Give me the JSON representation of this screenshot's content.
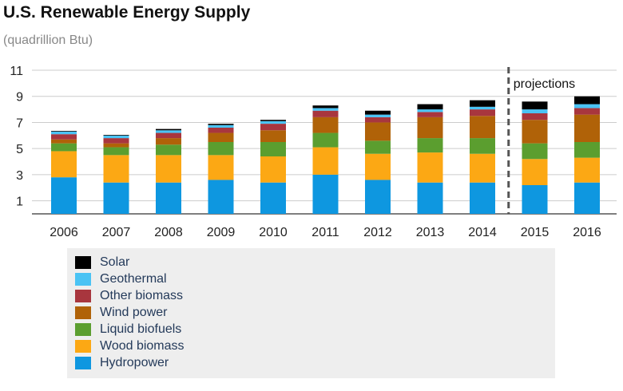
{
  "title": "U.S. Renewable Energy Supply",
  "subtitle": "(quadrillion Btu)",
  "annotation": "projections",
  "chart_data": {
    "type": "bar",
    "stacked": true,
    "categories": [
      "2006",
      "2007",
      "2008",
      "2009",
      "2010",
      "2011",
      "2012",
      "2013",
      "2014",
      "2015",
      "2016"
    ],
    "ylim": [
      0,
      11
    ],
    "yticks": [
      1,
      3,
      5,
      7,
      9,
      11
    ],
    "grid": true,
    "projection_start_after": "2014",
    "series": [
      {
        "name": "Hydropower",
        "color": "#0e97e0",
        "values": [
          2.8,
          2.4,
          2.4,
          2.6,
          2.4,
          3.0,
          2.6,
          2.4,
          2.4,
          2.2,
          2.4
        ]
      },
      {
        "name": "Wood biomass",
        "color": "#fca814",
        "values": [
          2.0,
          2.1,
          2.1,
          1.9,
          2.0,
          2.1,
          2.0,
          2.3,
          2.2,
          2.0,
          1.9
        ]
      },
      {
        "name": "Liquid biofuels",
        "color": "#5b9e2f",
        "values": [
          0.6,
          0.6,
          0.8,
          1.0,
          1.1,
          1.1,
          1.0,
          1.1,
          1.2,
          1.2,
          1.2
        ]
      },
      {
        "name": "Wind power",
        "color": "#b06208",
        "values": [
          0.3,
          0.3,
          0.5,
          0.7,
          0.9,
          1.2,
          1.4,
          1.6,
          1.7,
          1.8,
          2.1
        ]
      },
      {
        "name": "Other biomass",
        "color": "#a8363e",
        "values": [
          0.4,
          0.4,
          0.4,
          0.4,
          0.5,
          0.5,
          0.4,
          0.4,
          0.5,
          0.5,
          0.5
        ]
      },
      {
        "name": "Geothermal",
        "color": "#4ac3f4",
        "values": [
          0.2,
          0.2,
          0.2,
          0.2,
          0.2,
          0.2,
          0.2,
          0.2,
          0.2,
          0.3,
          0.3
        ]
      },
      {
        "name": "Solar",
        "color": "#000000",
        "values": [
          0.05,
          0.05,
          0.1,
          0.1,
          0.1,
          0.2,
          0.3,
          0.4,
          0.5,
          0.6,
          0.6
        ]
      }
    ]
  },
  "legend": [
    {
      "label": "Solar",
      "color": "#000000"
    },
    {
      "label": "Geothermal",
      "color": "#4ac3f4"
    },
    {
      "label": "Other biomass",
      "color": "#a8363e"
    },
    {
      "label": "Wind power",
      "color": "#b06208"
    },
    {
      "label": "Liquid biofuels",
      "color": "#5b9e2f"
    },
    {
      "label": "Wood biomass",
      "color": "#fca814"
    },
    {
      "label": "Hydropower",
      "color": "#0e97e0"
    }
  ]
}
